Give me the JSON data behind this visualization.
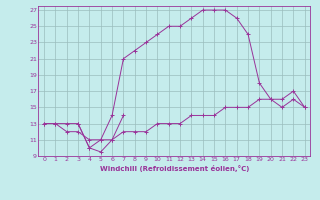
{
  "xlabel": "Windchill (Refroidissement éolien,°C)",
  "background_color": "#c5ecec",
  "grid_color": "#9bbebe",
  "line_color": "#993399",
  "xlim": [
    -0.5,
    23.5
  ],
  "ylim": [
    9,
    27.5
  ],
  "xticks": [
    0,
    1,
    2,
    3,
    4,
    5,
    6,
    7,
    8,
    9,
    10,
    11,
    12,
    13,
    14,
    15,
    16,
    17,
    18,
    19,
    20,
    21,
    22,
    23
  ],
  "yticks": [
    9,
    11,
    13,
    15,
    17,
    19,
    21,
    23,
    25,
    27
  ],
  "curve1_x": [
    0,
    1,
    2,
    3,
    4,
    5,
    6,
    7,
    8,
    9,
    10,
    11,
    12,
    13,
    14,
    15,
    16,
    17,
    18,
    19,
    20,
    21,
    22,
    23
  ],
  "curve1_y": [
    13,
    13,
    13,
    13,
    10,
    11,
    14,
    21,
    22,
    23,
    24,
    25,
    25,
    26,
    27,
    27,
    27,
    26,
    24,
    18,
    16,
    15,
    16,
    15
  ],
  "curve2_x": [
    3,
    4,
    5,
    6,
    7
  ],
  "curve2_y": [
    13,
    10,
    9.5,
    11,
    14
  ],
  "curve3_x": [
    0,
    1,
    2,
    3,
    4,
    5,
    6,
    7,
    8,
    9,
    10,
    11,
    12,
    13,
    14,
    15,
    16,
    17,
    18,
    19,
    20,
    21,
    22,
    23
  ],
  "curve3_y": [
    13,
    13,
    12,
    12,
    11,
    11,
    11,
    12,
    12,
    12,
    13,
    13,
    13,
    14,
    14,
    14,
    15,
    15,
    15,
    16,
    16,
    16,
    17,
    15
  ],
  "marker": "+"
}
